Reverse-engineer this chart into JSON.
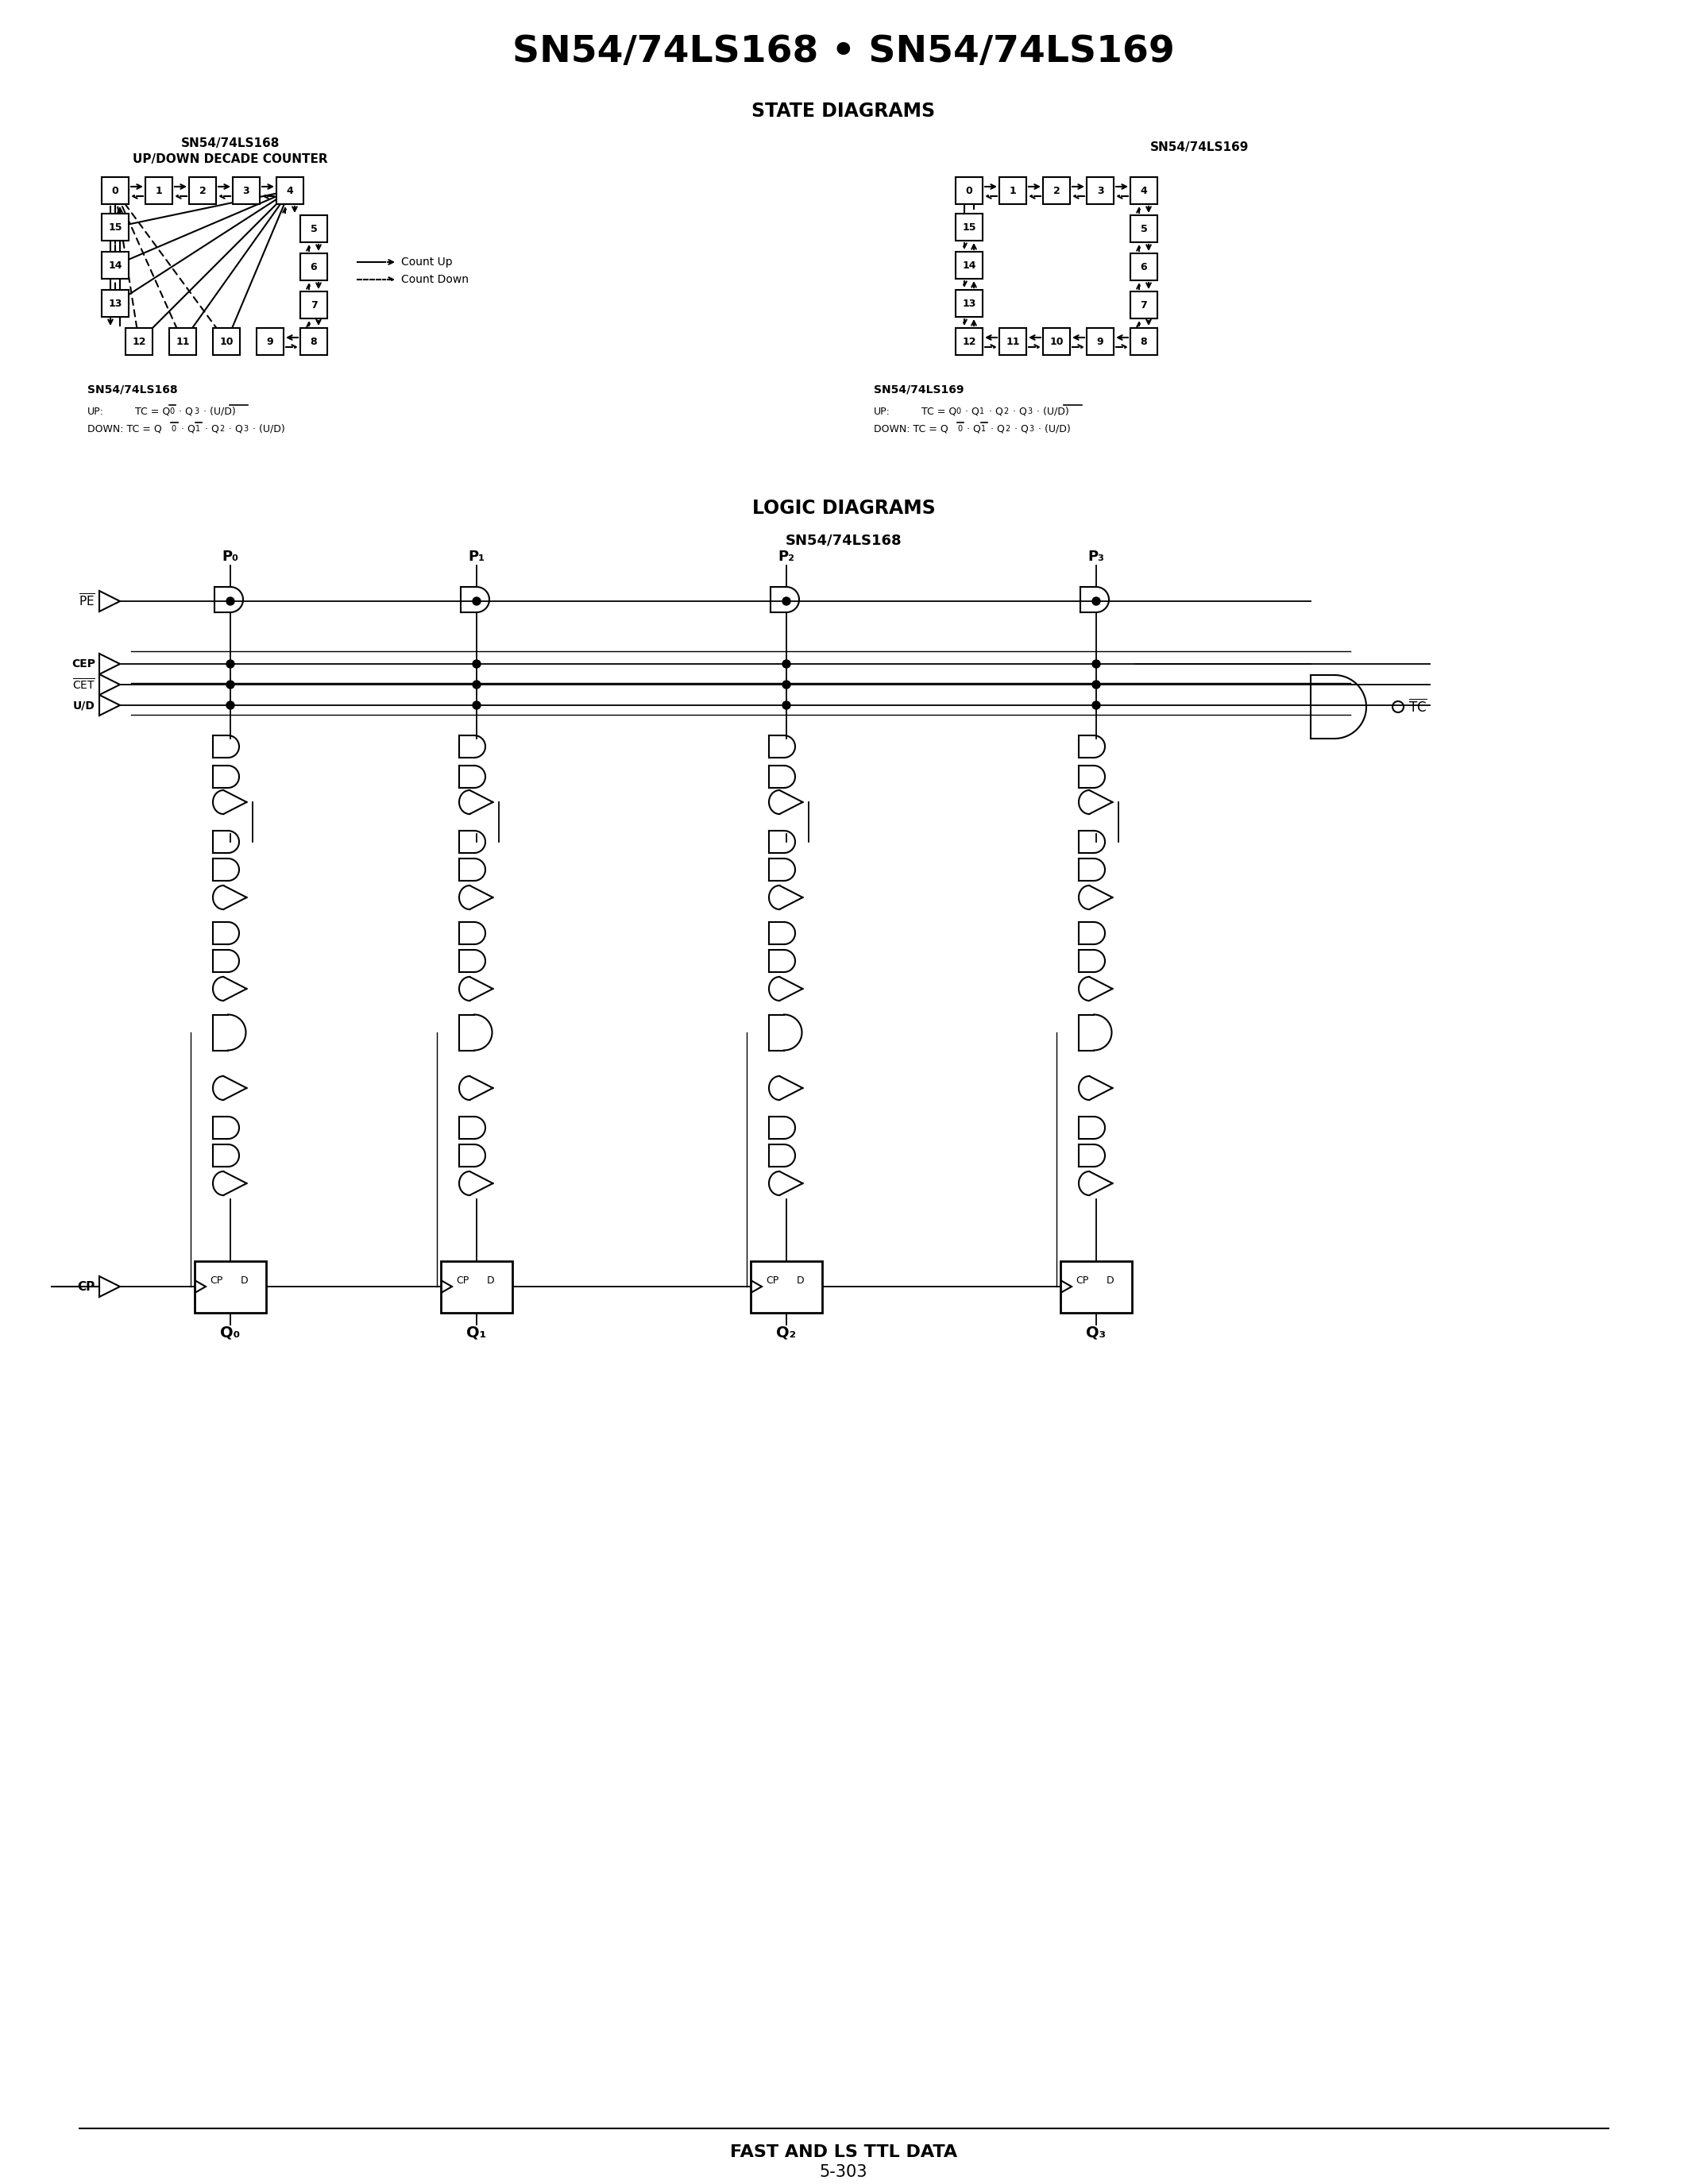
{
  "title": "SN54/74LS168 • SN54/74LS169",
  "state_diagrams_title": "STATE DIAGRAMS",
  "logic_diagrams_title": "LOGIC DIAGRAMS",
  "ls168_subtitle": "SN54/74LS168",
  "ls168_subtitle2": "UP/DOWN DECADE COUNTER",
  "ls169_title": "SN54/74LS169",
  "ls168_logic_title": "SN54/74LS168",
  "footer_text": "FAST AND LS TTL DATA",
  "page_number": "5-303",
  "bg_color": "#ffffff",
  "text_color": "#000000"
}
